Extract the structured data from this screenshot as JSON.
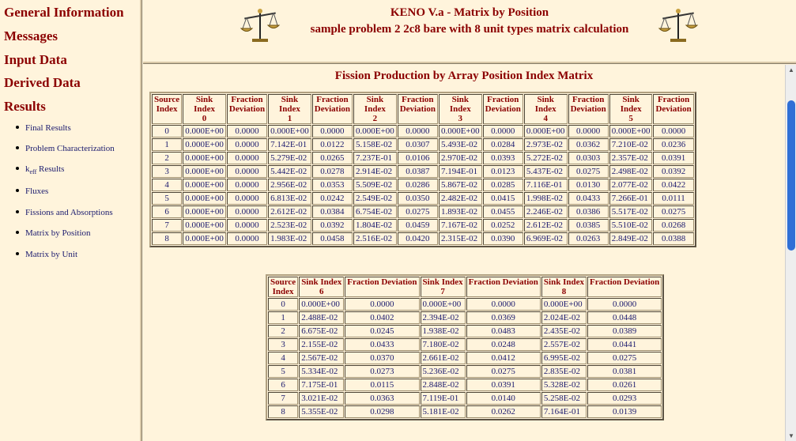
{
  "nav": {
    "main": [
      "General Information",
      "Messages",
      "Input Data",
      "Derived Data",
      "Results"
    ],
    "sub": [
      {
        "label": "Final Results"
      },
      {
        "label": "Problem Characterization"
      },
      {
        "k": "k",
        "sub": "eff",
        "label": " Results"
      },
      {
        "label": "Fluxes"
      },
      {
        "label": "Fissions and Absorptions"
      },
      {
        "label": "Matrix by Position"
      },
      {
        "label": "Matrix by Unit"
      }
    ]
  },
  "header": {
    "title": "KENO V.a - Matrix by Position",
    "subtitle": "sample problem 2 2c8 bare with 8 unit types matrix calculation"
  },
  "main": {
    "heading": "Fission Production by Array Position Index Matrix"
  },
  "table1": {
    "headers": [
      [
        "Source",
        "Index"
      ],
      [
        "Sink",
        "Index",
        "0"
      ],
      [
        "Fraction",
        "Deviation"
      ],
      [
        "Sink",
        "Index",
        "1"
      ],
      [
        "Fraction",
        "Deviation"
      ],
      [
        "Sink",
        "Index",
        "2"
      ],
      [
        "Fraction",
        "Deviation"
      ],
      [
        "Sink",
        "Index",
        "3"
      ],
      [
        "Fraction",
        "Deviation"
      ],
      [
        "Sink",
        "Index",
        "4"
      ],
      [
        "Fraction",
        "Deviation"
      ],
      [
        "Sink",
        "Index",
        "5"
      ],
      [
        "Fraction",
        "Deviation"
      ]
    ],
    "rows": [
      [
        "0",
        "0.000E+00",
        "0.0000",
        "0.000E+00",
        "0.0000",
        "0.000E+00",
        "0.0000",
        "0.000E+00",
        "0.0000",
        "0.000E+00",
        "0.0000",
        "0.000E+00",
        "0.0000"
      ],
      [
        "1",
        "0.000E+00",
        "0.0000",
        "7.142E-01",
        "0.0122",
        "5.158E-02",
        "0.0307",
        "5.493E-02",
        "0.0284",
        "2.973E-02",
        "0.0362",
        "7.210E-02",
        "0.0236"
      ],
      [
        "2",
        "0.000E+00",
        "0.0000",
        "5.279E-02",
        "0.0265",
        "7.237E-01",
        "0.0106",
        "2.970E-02",
        "0.0393",
        "5.272E-02",
        "0.0303",
        "2.357E-02",
        "0.0391"
      ],
      [
        "3",
        "0.000E+00",
        "0.0000",
        "5.442E-02",
        "0.0278",
        "2.914E-02",
        "0.0387",
        "7.194E-01",
        "0.0123",
        "5.437E-02",
        "0.0275",
        "2.498E-02",
        "0.0392"
      ],
      [
        "4",
        "0.000E+00",
        "0.0000",
        "2.956E-02",
        "0.0353",
        "5.509E-02",
        "0.0286",
        "5.867E-02",
        "0.0285",
        "7.116E-01",
        "0.0130",
        "2.077E-02",
        "0.0422"
      ],
      [
        "5",
        "0.000E+00",
        "0.0000",
        "6.813E-02",
        "0.0242",
        "2.549E-02",
        "0.0350",
        "2.482E-02",
        "0.0415",
        "1.998E-02",
        "0.0433",
        "7.266E-01",
        "0.0111"
      ],
      [
        "6",
        "0.000E+00",
        "0.0000",
        "2.612E-02",
        "0.0384",
        "6.754E-02",
        "0.0275",
        "1.893E-02",
        "0.0455",
        "2.246E-02",
        "0.0386",
        "5.517E-02",
        "0.0275"
      ],
      [
        "7",
        "0.000E+00",
        "0.0000",
        "2.523E-02",
        "0.0392",
        "1.804E-02",
        "0.0459",
        "7.167E-02",
        "0.0252",
        "2.612E-02",
        "0.0385",
        "5.510E-02",
        "0.0268"
      ],
      [
        "8",
        "0.000E+00",
        "0.0000",
        "1.983E-02",
        "0.0458",
        "2.516E-02",
        "0.0420",
        "2.315E-02",
        "0.0390",
        "6.969E-02",
        "0.0263",
        "2.849E-02",
        "0.0388"
      ]
    ]
  },
  "table2": {
    "headers": [
      [
        "Source",
        "Index"
      ],
      [
        "Sink Index",
        "6"
      ],
      [
        "Fraction Deviation"
      ],
      [
        "Sink Index",
        "7"
      ],
      [
        "Fraction Deviation"
      ],
      [
        "Sink Index",
        "8"
      ],
      [
        "Fraction Deviation"
      ]
    ],
    "rows": [
      [
        "0",
        "0.000E+00",
        "0.0000",
        "0.000E+00",
        "0.0000",
        "0.000E+00",
        "0.0000"
      ],
      [
        "1",
        "2.488E-02",
        "0.0402",
        "2.394E-02",
        "0.0369",
        "2.024E-02",
        "0.0448"
      ],
      [
        "2",
        "6.675E-02",
        "0.0245",
        "1.938E-02",
        "0.0483",
        "2.435E-02",
        "0.0389"
      ],
      [
        "3",
        "2.155E-02",
        "0.0433",
        "7.180E-02",
        "0.0248",
        "2.557E-02",
        "0.0441"
      ],
      [
        "4",
        "2.567E-02",
        "0.0370",
        "2.661E-02",
        "0.0412",
        "6.995E-02",
        "0.0275"
      ],
      [
        "5",
        "5.334E-02",
        "0.0273",
        "5.236E-02",
        "0.0275",
        "2.835E-02",
        "0.0381"
      ],
      [
        "6",
        "7.175E-01",
        "0.0115",
        "2.848E-02",
        "0.0391",
        "5.328E-02",
        "0.0261"
      ],
      [
        "7",
        "3.021E-02",
        "0.0363",
        "7.119E-01",
        "0.0140",
        "5.258E-02",
        "0.0293"
      ],
      [
        "8",
        "5.355E-02",
        "0.0298",
        "5.181E-02",
        "0.0262",
        "7.164E-01",
        "0.0139"
      ]
    ]
  },
  "colors": {
    "heading": "#8b0000",
    "value": "#1a1a6e",
    "background": "#fff4dc",
    "scrollbar": "#2f6fd6"
  }
}
